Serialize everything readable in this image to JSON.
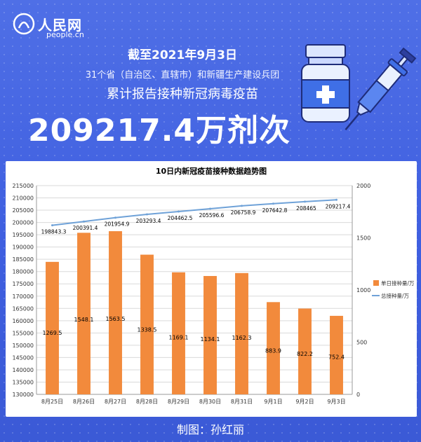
{
  "header": {
    "logo_text": "人民网",
    "logo_url_text": "people.cn",
    "date_line": "截至2021年9月3日",
    "region_line": "31个省（自治区、直辖市）和新疆生产建设兵团",
    "subject_line": "累计报告接种新冠病毒疫苗",
    "total_line": "209217.4万剂次"
  },
  "footer": {
    "credit": "制图：孙红丽"
  },
  "colors": {
    "background": "#4466e0",
    "bar": "#f28a3c",
    "line": "#6fa2d8",
    "total_text": "#ffffff"
  },
  "icons": [
    "vaccine-vial-icon",
    "syringe-icon",
    "people-logo-icon"
  ],
  "chart_data": {
    "type": "bar",
    "title": "10日内新冠疫苗接种数据趋势图",
    "categories": [
      "8月25日",
      "8月26日",
      "8月27日",
      "8月28日",
      "8月29日",
      "8月30日",
      "8月31日",
      "9月1日",
      "9月2日",
      "9月3日"
    ],
    "series": [
      {
        "name": "单日接种量/万",
        "type": "bar",
        "axis": "right",
        "values": [
          1269.5,
          1548.1,
          1563.5,
          1338.5,
          1169.1,
          1134.1,
          1162.3,
          883.9,
          822.2,
          752.4
        ],
        "labels": [
          "1269.5",
          "1548.1",
          "1563.5",
          "1338.5",
          "1169.1",
          "1134.1",
          "1162.3",
          "883.9",
          "822.2",
          "752.4"
        ]
      },
      {
        "name": "总接种量/万",
        "type": "line",
        "axis": "left",
        "values": [
          198843.3,
          200391.4,
          201954.9,
          203293.4,
          204462.5,
          205596.6,
          206758.9,
          207642.8,
          208465,
          209217.4
        ],
        "labels": [
          "198843.3",
          "200391.4",
          "201954.9",
          "203293.4",
          "204462.5",
          "205596.6",
          "206758.9",
          "207642.8",
          "208465",
          "209217.4"
        ]
      }
    ],
    "y_left": {
      "min": 130000,
      "max": 215000,
      "step": 5000,
      "ticks": [
        "130000",
        "135000",
        "140000",
        "145000",
        "150000",
        "155000",
        "160000",
        "165000",
        "170000",
        "175000",
        "180000",
        "185000",
        "190000",
        "195000",
        "200000",
        "205000",
        "210000",
        "215000"
      ]
    },
    "y_right": {
      "min": 0,
      "max": 2000,
      "step": 500,
      "ticks": [
        "0",
        "500",
        "1000",
        "1500",
        "2000"
      ]
    },
    "legend_position": "right",
    "grid": true
  }
}
